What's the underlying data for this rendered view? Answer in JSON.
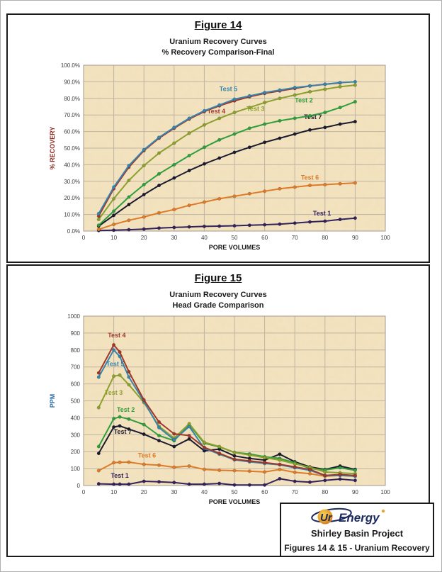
{
  "footer": {
    "logo": {
      "mark": "Ur",
      "word": "Energy"
    },
    "project": "Shirley Basin Project",
    "caption": "Figures 14 & 15 - Uranium Recovery"
  },
  "chart_data": [
    {
      "type": "line",
      "title": "Figure 14",
      "subtitle1": "Uranium Recovery Curves",
      "subtitle2": "% Recovery Comparison-Final",
      "xlabel": "PORE VOLUMES",
      "ylabel": "% RECOVERY",
      "ylabel_color": "#8f2a21",
      "plot_bg": "#f2e0bb",
      "grid_color": "#bdb4a2",
      "xlim": [
        0,
        100
      ],
      "ylim": [
        0,
        100
      ],
      "x_ticks": [
        0,
        10,
        20,
        30,
        40,
        50,
        60,
        70,
        80,
        90,
        100
      ],
      "y_ticks": [
        0,
        10,
        20,
        30,
        40,
        50,
        60,
        70,
        80,
        90,
        100
      ],
      "y_tick_labels": [
        "0.0%",
        "10.0%",
        "20.0%",
        "30.0%",
        "40.0%",
        "50.0%",
        "60.0%",
        "70.0%",
        "80.0%",
        "90.0%",
        "100.0%"
      ],
      "x": [
        5,
        10,
        15,
        20,
        25,
        30,
        35,
        40,
        45,
        50,
        55,
        60,
        65,
        70,
        75,
        80,
        85,
        90
      ],
      "series": [
        {
          "name": "Test 1",
          "color": "#33235c",
          "values": [
            0.3,
            0.5,
            0.8,
            1.2,
            1.8,
            2.2,
            2.5,
            2.8,
            3,
            3.2,
            3.5,
            3.8,
            4.2,
            4.8,
            5.5,
            6,
            7,
            7.8
          ],
          "label_at": [
            79,
            9.5
          ]
        },
        {
          "name": "Test 6",
          "color": "#dd7b28",
          "values": [
            1,
            4,
            6.5,
            8.5,
            11,
            13,
            15.5,
            17.5,
            19.5,
            21,
            22.5,
            24,
            25.5,
            26.5,
            27.5,
            28,
            28.5,
            29
          ],
          "label_at": [
            75,
            31
          ]
        },
        {
          "name": "Test 7",
          "color": "#1b1b2f",
          "values": [
            3,
            9.5,
            16,
            22,
            27.5,
            32,
            36.5,
            40.5,
            44,
            47.5,
            50.5,
            53.5,
            56,
            58.5,
            61,
            62.5,
            64.5,
            66
          ],
          "label_at": [
            76,
            67.5
          ]
        },
        {
          "name": "Test 2",
          "color": "#2e9e3e",
          "values": [
            3.5,
            12,
            20.5,
            28,
            34.5,
            40,
            45.5,
            50.5,
            55,
            58.5,
            62,
            64.5,
            66.5,
            68,
            69.5,
            71.5,
            74.5,
            78
          ],
          "label_at": [
            73,
            77.5
          ]
        },
        {
          "name": "Test 3",
          "color": "#8ba02f",
          "values": [
            7,
            19.5,
            30.5,
            39.5,
            47,
            53,
            59,
            64,
            68,
            71.5,
            74.5,
            77.5,
            80,
            82,
            84,
            85.5,
            87,
            88
          ],
          "label_at": [
            57,
            72.5
          ]
        },
        {
          "name": "Test 4",
          "color": "#a0372b",
          "values": [
            9,
            25.5,
            38.5,
            48.5,
            56,
            62,
            67.5,
            72,
            75.5,
            78.5,
            81,
            83,
            84.5,
            86,
            87.5,
            88.5,
            89.3,
            null
          ],
          "label_at": [
            44,
            71
          ]
        },
        {
          "name": "Test 5",
          "color": "#3785ad",
          "values": [
            10.5,
            26.5,
            39.5,
            49,
            56.5,
            62.5,
            68,
            72.5,
            76,
            79.5,
            81.5,
            83.5,
            85,
            86.5,
            87.5,
            88.5,
            89.5,
            90
          ],
          "label_at": [
            48,
            84.5
          ]
        }
      ]
    },
    {
      "type": "line",
      "title": "Figure 15",
      "subtitle1": "Uranium Recovery Curves",
      "subtitle2": "Head Grade Comparison",
      "xlabel": "PORE VOLUMES",
      "ylabel": "PPM",
      "ylabel_color": "#2e6da4",
      "plot_bg": "#f2e0bb",
      "grid_color": "#bdb4a2",
      "xlim": [
        0,
        100
      ],
      "ylim": [
        0,
        1000
      ],
      "x_ticks": [
        0,
        10,
        20,
        30,
        40,
        50,
        60,
        70,
        80,
        90,
        100
      ],
      "y_ticks": [
        0,
        100,
        200,
        300,
        400,
        500,
        600,
        700,
        800,
        900,
        1000
      ],
      "y_tick_labels": [
        "0",
        "100",
        "200",
        "300",
        "400",
        "500",
        "600",
        "700",
        "800",
        "900",
        "1000"
      ],
      "x": [
        5,
        10,
        12,
        15,
        20,
        25,
        30,
        35,
        40,
        45,
        50,
        55,
        60,
        65,
        70,
        75,
        80,
        85,
        90
      ],
      "series": [
        {
          "name": "Test 1",
          "color": "#33235c",
          "values": [
            10,
            8,
            8,
            8,
            25,
            22,
            18,
            8,
            8,
            12,
            3,
            3,
            3,
            40,
            25,
            20,
            30,
            38,
            30
          ],
          "label_at": [
            12,
            45
          ]
        },
        {
          "name": "Test 6",
          "color": "#dd7b28",
          "values": [
            88,
            135,
            137,
            138,
            125,
            120,
            108,
            115,
            95,
            90,
            88,
            85,
            80,
            95,
            78,
            70,
            55,
            60,
            55
          ],
          "label_at": [
            21,
            165
          ]
        },
        {
          "name": "Test 7",
          "color": "#1b1b2f",
          "values": [
            190,
            345,
            352,
            333,
            303,
            265,
            230,
            275,
            205,
            215,
            175,
            160,
            150,
            185,
            140,
            110,
            95,
            115,
            95
          ],
          "label_at": [
            13,
            305
          ]
        },
        {
          "name": "Test 2",
          "color": "#2e9e3e",
          "values": [
            230,
            395,
            405,
            392,
            360,
            295,
            265,
            358,
            250,
            228,
            196,
            186,
            170,
            160,
            135,
            100,
            92,
            105,
            90
          ],
          "label_at": [
            14,
            435
          ]
        },
        {
          "name": "Test 3",
          "color": "#8ba02f",
          "values": [
            460,
            645,
            652,
            595,
            490,
            350,
            280,
            365,
            255,
            230,
            195,
            180,
            165,
            150,
            128,
            108,
            80,
            75,
            70
          ],
          "label_at": [
            10,
            535
          ]
        },
        {
          "name": "Test 5",
          "color": "#3785ad",
          "values": [
            640,
            800,
            762,
            640,
            497,
            342,
            270,
            348,
            220,
            185,
            152,
            140,
            130,
            122,
            105,
            90,
            58,
            60,
            55
          ],
          "label_at": [
            10.5,
            705
          ]
        },
        {
          "name": "Test 4",
          "color": "#a0372b",
          "values": [
            665,
            830,
            788,
            672,
            505,
            375,
            305,
            295,
            225,
            190,
            155,
            145,
            135,
            125,
            110,
            95,
            60,
            65,
            60
          ],
          "label_at": [
            11,
            875
          ]
        }
      ]
    }
  ]
}
